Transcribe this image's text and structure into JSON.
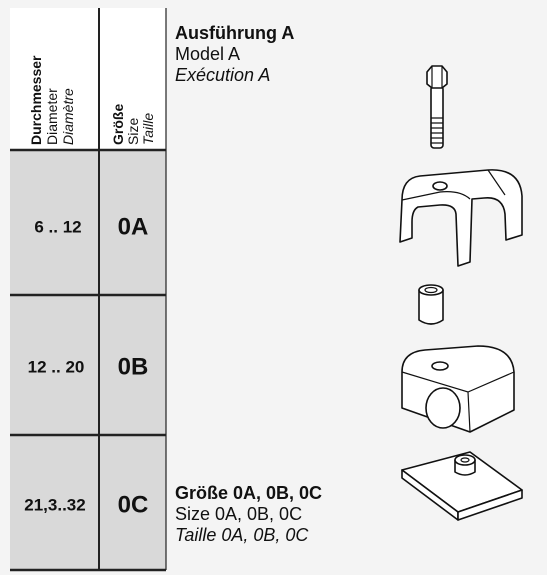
{
  "table": {
    "header": {
      "diameter": [
        "Durchmesser",
        "Diameter",
        "Diamètre"
      ],
      "size": [
        "Größe",
        "Size",
        "Taille"
      ]
    },
    "rows": [
      [
        "6 .. 12",
        "0A"
      ],
      [
        "12 .. 20",
        "0B"
      ],
      [
        "21,3..32",
        "0C"
      ]
    ]
  },
  "model": {
    "title": "Ausführung A",
    "lines": [
      "Model A",
      "Exécution A"
    ]
  },
  "sizes": {
    "title": "Größe 0A, 0B, 0C",
    "lines": [
      "Size 0A, 0B, 0C",
      "Taille 0A, 0B, 0C"
    ]
  }
}
